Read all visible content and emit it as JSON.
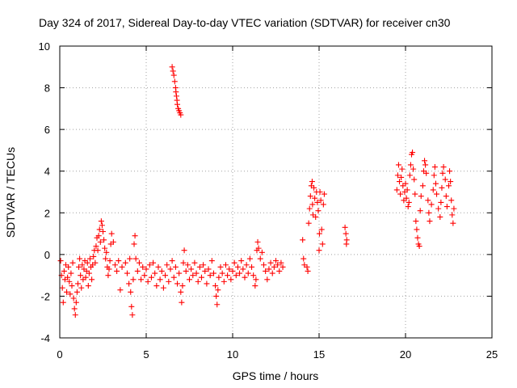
{
  "chart_data": {
    "type": "scatter",
    "title": "Day 324 of 2017, Sidereal Day-to-day VTEC variation (SDTVAR) for receiver cn30",
    "xlabel": "GPS time / hours",
    "ylabel": "SDTVAR / TECUs",
    "xlim": [
      0,
      25
    ],
    "ylim": [
      -4,
      10
    ],
    "xticks": [
      0,
      5,
      10,
      15,
      20,
      25
    ],
    "yticks": [
      -4,
      -2,
      0,
      2,
      4,
      6,
      8,
      10
    ],
    "xtick_labels": [
      "0",
      "5",
      "10",
      "15",
      "20",
      "25"
    ],
    "ytick_labels": [
      "-4",
      "-2",
      "0",
      "2",
      "4",
      "6",
      "8",
      "10"
    ],
    "grid": true,
    "marker": "plus",
    "series": [
      {
        "name": "cn30",
        "color": "#ff0000",
        "points": [
          [
            0.05,
            -0.3
          ],
          [
            0.1,
            -1.0
          ],
          [
            0.15,
            -1.6
          ],
          [
            0.2,
            -2.3
          ],
          [
            0.25,
            -0.8
          ],
          [
            0.3,
            -1.2
          ],
          [
            0.35,
            -0.5
          ],
          [
            0.4,
            -1.8
          ],
          [
            0.45,
            -1.1
          ],
          [
            0.5,
            -0.6
          ],
          [
            0.55,
            -1.3
          ],
          [
            0.6,
            -1.9
          ],
          [
            0.65,
            -0.9
          ],
          [
            0.7,
            -1.5
          ],
          [
            0.75,
            -0.4
          ],
          [
            0.8,
            -2.1
          ],
          [
            0.85,
            -2.6
          ],
          [
            0.9,
            -2.9
          ],
          [
            0.95,
            -2.3
          ],
          [
            1.0,
            -1.8
          ],
          [
            1.05,
            -1.4
          ],
          [
            1.1,
            -0.6
          ],
          [
            1.15,
            -0.2
          ],
          [
            1.2,
            -1.0
          ],
          [
            1.25,
            -1.6
          ],
          [
            1.3,
            -0.5
          ],
          [
            1.35,
            -1.2
          ],
          [
            1.4,
            -0.7
          ],
          [
            1.45,
            -0.3
          ],
          [
            1.5,
            -1.1
          ],
          [
            1.55,
            -0.8
          ],
          [
            1.6,
            -0.4
          ],
          [
            1.65,
            -1.5
          ],
          [
            1.7,
            -0.9
          ],
          [
            1.75,
            -0.2
          ],
          [
            1.8,
            -0.6
          ],
          [
            1.85,
            -1.2
          ],
          [
            1.9,
            -0.5
          ],
          [
            1.95,
            -0.1
          ],
          [
            2.0,
            0.2
          ],
          [
            2.05,
            -0.4
          ],
          [
            2.1,
            0.4
          ],
          [
            2.15,
            0.8
          ],
          [
            2.2,
            0.2
          ],
          [
            2.25,
            0.9
          ],
          [
            2.3,
            1.2
          ],
          [
            2.35,
            0.6
          ],
          [
            2.4,
            1.6
          ],
          [
            2.45,
            1.4
          ],
          [
            2.5,
            1.1
          ],
          [
            2.55,
            0.7
          ],
          [
            2.6,
            0.3
          ],
          [
            2.65,
            -0.2
          ],
          [
            2.7,
            0.1
          ],
          [
            2.75,
            -0.6
          ],
          [
            2.8,
            -1.0
          ],
          [
            2.85,
            -0.7
          ],
          [
            2.9,
            -0.3
          ],
          [
            2.95,
            0.5
          ],
          [
            3.0,
            1.0
          ],
          [
            3.1,
            0.6
          ],
          [
            3.2,
            -0.5
          ],
          [
            3.3,
            -0.8
          ],
          [
            3.4,
            -0.3
          ],
          [
            3.5,
            -1.7
          ],
          [
            3.6,
            -0.6
          ],
          [
            3.8,
            -0.4
          ],
          [
            3.9,
            -0.9
          ],
          [
            4.0,
            -1.4
          ],
          [
            4.05,
            -0.2
          ],
          [
            4.1,
            -1.8
          ],
          [
            4.15,
            -2.5
          ],
          [
            4.2,
            -2.9
          ],
          [
            4.25,
            -1.2
          ],
          [
            4.3,
            0.5
          ],
          [
            4.35,
            0.9
          ],
          [
            4.4,
            -0.2
          ],
          [
            4.5,
            -0.8
          ],
          [
            4.6,
            -0.4
          ],
          [
            4.7,
            -1.2
          ],
          [
            4.8,
            -0.6
          ],
          [
            4.9,
            -1.0
          ],
          [
            5.0,
            -0.7
          ],
          [
            5.1,
            -1.3
          ],
          [
            5.2,
            -0.5
          ],
          [
            5.3,
            -1.1
          ],
          [
            5.4,
            -0.4
          ],
          [
            5.5,
            -0.9
          ],
          [
            5.6,
            -1.5
          ],
          [
            5.7,
            -0.6
          ],
          [
            5.8,
            -1.2
          ],
          [
            5.9,
            -0.8
          ],
          [
            6.0,
            -1.6
          ],
          [
            6.1,
            -1.0
          ],
          [
            6.2,
            -0.5
          ],
          [
            6.3,
            -1.3
          ],
          [
            6.4,
            -0.7
          ],
          [
            6.5,
            -0.3
          ],
          [
            6.6,
            -1.1
          ],
          [
            6.7,
            -0.6
          ],
          [
            6.8,
            -1.4
          ],
          [
            6.9,
            -0.9
          ],
          [
            7.0,
            -1.8
          ],
          [
            7.05,
            -2.3
          ],
          [
            7.1,
            -1.5
          ],
          [
            7.15,
            -0.4
          ],
          [
            7.2,
            0.2
          ],
          [
            7.3,
            -0.8
          ],
          [
            7.4,
            -0.5
          ],
          [
            7.5,
            -1.2
          ],
          [
            7.6,
            -0.7
          ],
          [
            7.7,
            -1.0
          ],
          [
            7.8,
            -0.4
          ],
          [
            7.9,
            -0.9
          ],
          [
            8.0,
            -1.3
          ],
          [
            8.1,
            -0.6
          ],
          [
            8.2,
            -1.1
          ],
          [
            8.3,
            -0.5
          ],
          [
            8.4,
            -0.8
          ],
          [
            8.5,
            -1.4
          ],
          [
            8.6,
            -0.7
          ],
          [
            8.7,
            -1.0
          ],
          [
            8.8,
            -0.3
          ],
          [
            8.9,
            -0.9
          ],
          [
            9.0,
            -1.5
          ],
          [
            9.05,
            -2.0
          ],
          [
            9.1,
            -2.4
          ],
          [
            9.15,
            -1.7
          ],
          [
            9.2,
            -1.1
          ],
          [
            9.3,
            -0.6
          ],
          [
            9.4,
            -0.9
          ],
          [
            9.5,
            -1.3
          ],
          [
            9.6,
            -0.5
          ],
          [
            9.7,
            -1.0
          ],
          [
            9.8,
            -0.7
          ],
          [
            9.9,
            -1.2
          ],
          [
            10.0,
            -0.8
          ],
          [
            10.1,
            -0.4
          ],
          [
            10.2,
            -1.0
          ],
          [
            10.3,
            -0.6
          ],
          [
            10.4,
            -0.9
          ],
          [
            10.5,
            -0.3
          ],
          [
            10.6,
            -0.7
          ],
          [
            10.7,
            -1.1
          ],
          [
            10.8,
            -0.5
          ],
          [
            10.9,
            -0.9
          ],
          [
            11.0,
            -0.2
          ],
          [
            11.1,
            -0.6
          ],
          [
            11.2,
            -1.0
          ],
          [
            11.3,
            -1.5
          ],
          [
            11.35,
            -1.2
          ],
          [
            11.4,
            0.2
          ],
          [
            11.45,
            0.6
          ],
          [
            11.5,
            0.3
          ],
          [
            11.6,
            -0.2
          ],
          [
            11.7,
            0.1
          ],
          [
            11.8,
            -0.5
          ],
          [
            11.9,
            -0.8
          ],
          [
            12.0,
            -1.2
          ],
          [
            12.1,
            -0.7
          ],
          [
            12.2,
            -0.4
          ],
          [
            12.3,
            -0.9
          ],
          [
            12.4,
            -0.6
          ],
          [
            12.5,
            -0.3
          ],
          [
            12.6,
            -0.5
          ],
          [
            12.7,
            -0.8
          ],
          [
            12.8,
            -0.4
          ],
          [
            12.9,
            -0.6
          ],
          [
            6.5,
            9.0
          ],
          [
            6.55,
            8.8
          ],
          [
            6.6,
            8.6
          ],
          [
            6.65,
            8.3
          ],
          [
            6.7,
            8.0
          ],
          [
            6.72,
            7.8
          ],
          [
            6.75,
            7.6
          ],
          [
            6.78,
            7.4
          ],
          [
            6.8,
            7.2
          ],
          [
            6.85,
            7.0
          ],
          [
            6.9,
            6.9
          ],
          [
            6.95,
            6.8
          ],
          [
            7.0,
            6.7
          ],
          [
            14.05,
            0.7
          ],
          [
            14.1,
            -0.2
          ],
          [
            14.15,
            -0.5
          ],
          [
            14.3,
            -0.6
          ],
          [
            14.35,
            -0.8
          ],
          [
            14.4,
            1.5
          ],
          [
            14.45,
            2.2
          ],
          [
            14.5,
            2.8
          ],
          [
            14.55,
            3.3
          ],
          [
            14.6,
            3.5
          ],
          [
            14.62,
            2.4
          ],
          [
            14.65,
            1.9
          ],
          [
            14.7,
            3.2
          ],
          [
            14.75,
            2.7
          ],
          [
            14.8,
            1.8
          ],
          [
            14.85,
            3.0
          ],
          [
            14.9,
            2.5
          ],
          [
            14.95,
            2.1
          ],
          [
            15.0,
            0.2
          ],
          [
            15.02,
            1.0
          ],
          [
            15.05,
            3.0
          ],
          [
            15.1,
            2.6
          ],
          [
            15.15,
            1.2
          ],
          [
            15.2,
            0.5
          ],
          [
            15.25,
            2.4
          ],
          [
            15.3,
            2.9
          ],
          [
            16.5,
            1.3
          ],
          [
            16.55,
            1.0
          ],
          [
            16.6,
            0.7
          ],
          [
            16.58,
            0.5
          ],
          [
            19.5,
            3.1
          ],
          [
            19.55,
            3.8
          ],
          [
            19.6,
            4.3
          ],
          [
            19.65,
            3.5
          ],
          [
            19.7,
            2.9
          ],
          [
            19.75,
            3.7
          ],
          [
            19.8,
            4.1
          ],
          [
            19.85,
            3.3
          ],
          [
            19.9,
            2.6
          ],
          [
            19.95,
            3.0
          ],
          [
            20.0,
            3.4
          ],
          [
            20.05,
            2.7
          ],
          [
            20.1,
            3.1
          ],
          [
            20.15,
            2.3
          ],
          [
            20.2,
            2.5
          ],
          [
            20.25,
            3.8
          ],
          [
            20.3,
            4.3
          ],
          [
            20.35,
            4.8
          ],
          [
            20.4,
            4.9
          ],
          [
            20.45,
            4.1
          ],
          [
            20.5,
            3.6
          ],
          [
            20.55,
            2.9
          ],
          [
            20.6,
            1.6
          ],
          [
            20.65,
            1.2
          ],
          [
            20.7,
            0.8
          ],
          [
            20.75,
            0.5
          ],
          [
            20.8,
            0.4
          ],
          [
            20.85,
            2.1
          ],
          [
            20.9,
            2.8
          ],
          [
            21.0,
            3.3
          ],
          [
            21.05,
            4.0
          ],
          [
            21.1,
            4.5
          ],
          [
            21.15,
            4.3
          ],
          [
            21.2,
            3.9
          ],
          [
            21.3,
            2.6
          ],
          [
            21.35,
            2.0
          ],
          [
            21.4,
            1.6
          ],
          [
            21.5,
            2.4
          ],
          [
            21.6,
            3.1
          ],
          [
            21.65,
            3.8
          ],
          [
            21.7,
            4.2
          ],
          [
            21.75,
            3.4
          ],
          [
            21.8,
            2.9
          ],
          [
            21.9,
            2.2
          ],
          [
            22.0,
            1.8
          ],
          [
            22.05,
            2.5
          ],
          [
            22.1,
            3.2
          ],
          [
            22.15,
            3.9
          ],
          [
            22.2,
            4.2
          ],
          [
            22.3,
            3.6
          ],
          [
            22.35,
            2.8
          ],
          [
            22.4,
            2.3
          ],
          [
            22.5,
            3.3
          ],
          [
            22.55,
            4.0
          ],
          [
            22.6,
            3.5
          ],
          [
            22.65,
            2.6
          ],
          [
            22.7,
            1.9
          ],
          [
            22.75,
            1.5
          ],
          [
            22.8,
            2.2
          ]
        ]
      }
    ]
  }
}
